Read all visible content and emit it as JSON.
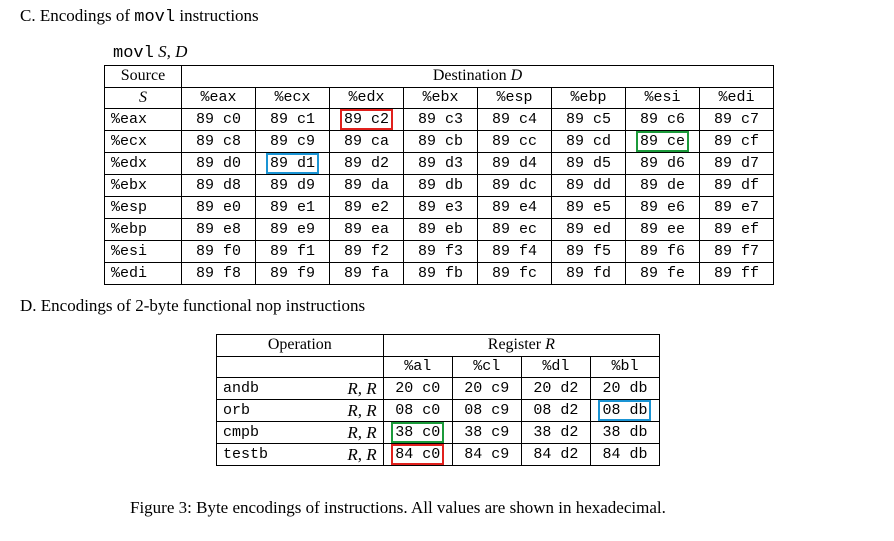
{
  "sectionC": {
    "title_prefix": "C. Encodings of ",
    "title_code": "movl",
    "title_suffix": " instructions",
    "syntax_mnemonic": "movl",
    "syntax_s": "S,",
    "syntax_d": "D",
    "source_label": "Source",
    "source_var": "S",
    "dest_label": "Destination",
    "dest_var": "D",
    "columns": [
      "%eax",
      "%ecx",
      "%edx",
      "%ebx",
      "%esp",
      "%ebp",
      "%esi",
      "%edi"
    ],
    "rows": [
      {
        "src": "%eax",
        "cells": [
          "89 c0",
          "89 c1",
          "89 c2",
          "89 c3",
          "89 c4",
          "89 c5",
          "89 c6",
          "89 c7"
        ]
      },
      {
        "src": "%ecx",
        "cells": [
          "89 c8",
          "89 c9",
          "89 ca",
          "89 cb",
          "89 cc",
          "89 cd",
          "89 ce",
          "89 cf"
        ]
      },
      {
        "src": "%edx",
        "cells": [
          "89 d0",
          "89 d1",
          "89 d2",
          "89 d3",
          "89 d4",
          "89 d5",
          "89 d6",
          "89 d7"
        ]
      },
      {
        "src": "%ebx",
        "cells": [
          "89 d8",
          "89 d9",
          "89 da",
          "89 db",
          "89 dc",
          "89 dd",
          "89 de",
          "89 df"
        ]
      },
      {
        "src": "%esp",
        "cells": [
          "89 e0",
          "89 e1",
          "89 e2",
          "89 e3",
          "89 e4",
          "89 e5",
          "89 e6",
          "89 e7"
        ]
      },
      {
        "src": "%ebp",
        "cells": [
          "89 e8",
          "89 e9",
          "89 ea",
          "89 eb",
          "89 ec",
          "89 ed",
          "89 ee",
          "89 ef"
        ]
      },
      {
        "src": "%esi",
        "cells": [
          "89 f0",
          "89 f1",
          "89 f2",
          "89 f3",
          "89 f4",
          "89 f5",
          "89 f6",
          "89 f7"
        ]
      },
      {
        "src": "%edi",
        "cells": [
          "89 f8",
          "89 f9",
          "89 fa",
          "89 fb",
          "89 fc",
          "89 fd",
          "89 fe",
          "89 ff"
        ]
      }
    ],
    "highlights": [
      {
        "row": 0,
        "col": 2,
        "color": "red"
      },
      {
        "row": 1,
        "col": 6,
        "color": "green"
      },
      {
        "row": 2,
        "col": 1,
        "color": "blue"
      }
    ]
  },
  "sectionD": {
    "title": "D. Encodings of 2-byte functional nop instructions",
    "operation_label": "Operation",
    "register_label": "Register",
    "register_var": "R",
    "columns": [
      "%al",
      "%cl",
      "%dl",
      "%bl"
    ],
    "rows": [
      {
        "op": "andb",
        "args": "R, R",
        "cells": [
          "20 c0",
          "20 c9",
          "20 d2",
          "20 db"
        ]
      },
      {
        "op": "orb",
        "args": "R, R",
        "cells": [
          "08 c0",
          "08 c9",
          "08 d2",
          "08 db"
        ]
      },
      {
        "op": "cmpb",
        "args": "R, R",
        "cells": [
          "38 c0",
          "38 c9",
          "38 d2",
          "38 db"
        ]
      },
      {
        "op": "testb",
        "args": "R, R",
        "cells": [
          "84 c0",
          "84 c9",
          "84 d2",
          "84 db"
        ]
      }
    ],
    "highlights": [
      {
        "row": 1,
        "col": 3,
        "color": "blue"
      },
      {
        "row": 2,
        "col": 0,
        "color": "green"
      },
      {
        "row": 3,
        "col": 0,
        "color": "red"
      }
    ]
  },
  "caption": "Figure 3: Byte encodings of instructions. All values are shown in hexadecimal.",
  "colors": {
    "red": "#e0201c",
    "blue": "#1a94d4",
    "green": "#1b9a3a"
  }
}
